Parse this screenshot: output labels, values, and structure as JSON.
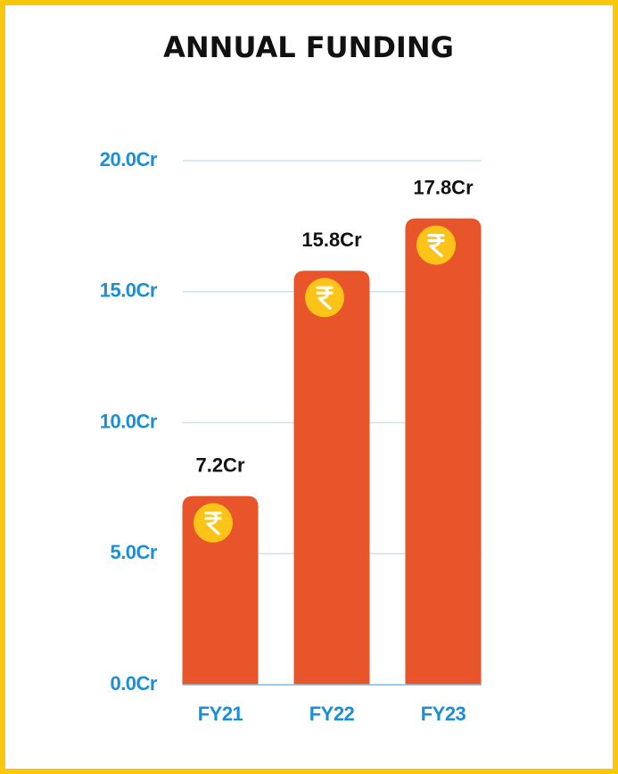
{
  "chart_data": {
    "type": "bar",
    "title": "ANNUAL FUNDING",
    "categories": [
      "FY21",
      "FY22",
      "FY23"
    ],
    "values": [
      7.2,
      15.8,
      17.8
    ],
    "value_labels": [
      "7.2Cr",
      "15.8Cr",
      "17.8Cr"
    ],
    "color": "#e8552b",
    "ylim": [
      0,
      20
    ],
    "yticks": [
      {
        "value": 0,
        "label": "0.0Cr"
      },
      {
        "value": 5,
        "label": "5.0Cr"
      },
      {
        "value": 10,
        "label": "10.0Cr"
      },
      {
        "value": 15,
        "label": "15.0Cr"
      },
      {
        "value": 20,
        "label": "20.0Cr"
      }
    ],
    "grid": true
  }
}
